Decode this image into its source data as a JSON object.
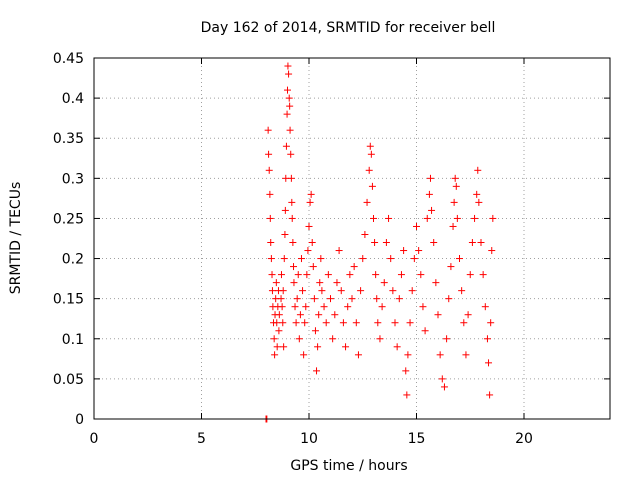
{
  "chart_data": {
    "type": "scatter",
    "title": "Day 162 of 2014, SRMTID for receiver bell",
    "xlabel": "GPS time / hours",
    "ylabel": "SRMTID / TECUs",
    "xlim": [
      0,
      24
    ],
    "ylim": [
      0,
      0.45
    ],
    "xticks": [
      0,
      5,
      10,
      15,
      20
    ],
    "yticks": [
      0,
      0.05,
      0.1,
      0.15,
      0.2,
      0.25,
      0.3,
      0.35,
      0.4,
      0.45
    ],
    "ytick_labels": [
      "0",
      "0.05",
      "0.1",
      "0.15",
      "0.2",
      "0.25",
      "0.3",
      "0.35",
      "0.4",
      "0.45"
    ],
    "marker": "+",
    "marker_color": "#ff0000",
    "grid": true,
    "series": [
      {
        "name": "SRMTID",
        "points": [
          [
            8.0,
            0.0
          ],
          [
            8.02,
            0.0
          ],
          [
            8.04,
            0.0
          ],
          [
            8.1,
            0.36
          ],
          [
            8.12,
            0.33
          ],
          [
            8.15,
            0.31
          ],
          [
            8.18,
            0.28
          ],
          [
            8.2,
            0.25
          ],
          [
            8.22,
            0.22
          ],
          [
            8.25,
            0.2
          ],
          [
            8.28,
            0.18
          ],
          [
            8.3,
            0.16
          ],
          [
            8.32,
            0.14
          ],
          [
            8.35,
            0.12
          ],
          [
            8.38,
            0.1
          ],
          [
            8.4,
            0.08
          ],
          [
            8.42,
            0.13
          ],
          [
            8.45,
            0.15
          ],
          [
            8.48,
            0.17
          ],
          [
            8.5,
            0.12
          ],
          [
            8.52,
            0.09
          ],
          [
            8.55,
            0.14
          ],
          [
            8.58,
            0.16
          ],
          [
            8.6,
            0.11
          ],
          [
            8.62,
            0.13
          ],
          [
            8.7,
            0.15
          ],
          [
            8.72,
            0.18
          ],
          [
            8.75,
            0.14
          ],
          [
            8.78,
            0.12
          ],
          [
            8.8,
            0.16
          ],
          [
            8.82,
            0.09
          ],
          [
            8.85,
            0.2
          ],
          [
            8.88,
            0.23
          ],
          [
            8.9,
            0.26
          ],
          [
            8.92,
            0.3
          ],
          [
            8.95,
            0.34
          ],
          [
            8.98,
            0.38
          ],
          [
            9.0,
            0.41
          ],
          [
            9.02,
            0.44
          ],
          [
            9.05,
            0.43
          ],
          [
            9.08,
            0.4
          ],
          [
            9.1,
            0.39
          ],
          [
            9.12,
            0.36
          ],
          [
            9.15,
            0.33
          ],
          [
            9.18,
            0.3
          ],
          [
            9.2,
            0.27
          ],
          [
            9.22,
            0.25
          ],
          [
            9.25,
            0.22
          ],
          [
            9.28,
            0.19
          ],
          [
            9.3,
            0.17
          ],
          [
            9.35,
            0.14
          ],
          [
            9.4,
            0.12
          ],
          [
            9.45,
            0.15
          ],
          [
            9.5,
            0.18
          ],
          [
            9.55,
            0.1
          ],
          [
            9.6,
            0.13
          ],
          [
            9.65,
            0.2
          ],
          [
            9.7,
            0.16
          ],
          [
            9.75,
            0.08
          ],
          [
            9.8,
            0.12
          ],
          [
            9.85,
            0.14
          ],
          [
            9.9,
            0.18
          ],
          [
            9.95,
            0.21
          ],
          [
            10.0,
            0.24
          ],
          [
            10.05,
            0.27
          ],
          [
            10.1,
            0.28
          ],
          [
            10.15,
            0.22
          ],
          [
            10.2,
            0.19
          ],
          [
            10.25,
            0.15
          ],
          [
            10.3,
            0.11
          ],
          [
            10.35,
            0.06
          ],
          [
            10.4,
            0.09
          ],
          [
            10.45,
            0.13
          ],
          [
            10.5,
            0.17
          ],
          [
            10.55,
            0.2
          ],
          [
            10.6,
            0.16
          ],
          [
            10.7,
            0.14
          ],
          [
            10.8,
            0.12
          ],
          [
            10.9,
            0.18
          ],
          [
            11.0,
            0.15
          ],
          [
            11.1,
            0.1
          ],
          [
            11.2,
            0.13
          ],
          [
            11.3,
            0.17
          ],
          [
            11.4,
            0.21
          ],
          [
            11.5,
            0.16
          ],
          [
            11.6,
            0.12
          ],
          [
            11.7,
            0.09
          ],
          [
            11.8,
            0.14
          ],
          [
            11.9,
            0.18
          ],
          [
            12.0,
            0.15
          ],
          [
            12.1,
            0.19
          ],
          [
            12.2,
            0.12
          ],
          [
            12.3,
            0.08
          ],
          [
            12.4,
            0.16
          ],
          [
            12.5,
            0.2
          ],
          [
            12.6,
            0.23
          ],
          [
            12.7,
            0.27
          ],
          [
            12.8,
            0.31
          ],
          [
            12.85,
            0.34
          ],
          [
            12.9,
            0.33
          ],
          [
            12.95,
            0.29
          ],
          [
            13.0,
            0.25
          ],
          [
            13.05,
            0.22
          ],
          [
            13.1,
            0.18
          ],
          [
            13.15,
            0.15
          ],
          [
            13.2,
            0.12
          ],
          [
            13.3,
            0.1
          ],
          [
            13.4,
            0.14
          ],
          [
            13.5,
            0.17
          ],
          [
            13.6,
            0.22
          ],
          [
            13.7,
            0.25
          ],
          [
            13.8,
            0.2
          ],
          [
            13.9,
            0.16
          ],
          [
            14.0,
            0.12
          ],
          [
            14.1,
            0.09
          ],
          [
            14.2,
            0.15
          ],
          [
            14.3,
            0.18
          ],
          [
            14.4,
            0.21
          ],
          [
            14.5,
            0.06
          ],
          [
            14.55,
            0.03
          ],
          [
            14.6,
            0.08
          ],
          [
            14.7,
            0.12
          ],
          [
            14.8,
            0.16
          ],
          [
            14.9,
            0.2
          ],
          [
            15.0,
            0.24
          ],
          [
            15.1,
            0.21
          ],
          [
            15.2,
            0.18
          ],
          [
            15.3,
            0.14
          ],
          [
            15.4,
            0.11
          ],
          [
            15.5,
            0.25
          ],
          [
            15.6,
            0.28
          ],
          [
            15.65,
            0.3
          ],
          [
            15.7,
            0.26
          ],
          [
            15.8,
            0.22
          ],
          [
            15.9,
            0.17
          ],
          [
            16.0,
            0.13
          ],
          [
            16.1,
            0.08
          ],
          [
            16.2,
            0.05
          ],
          [
            16.3,
            0.04
          ],
          [
            16.4,
            0.1
          ],
          [
            16.5,
            0.15
          ],
          [
            16.6,
            0.19
          ],
          [
            16.7,
            0.24
          ],
          [
            16.75,
            0.27
          ],
          [
            16.8,
            0.3
          ],
          [
            16.85,
            0.29
          ],
          [
            16.9,
            0.25
          ],
          [
            17.0,
            0.2
          ],
          [
            17.1,
            0.16
          ],
          [
            17.2,
            0.12
          ],
          [
            17.3,
            0.08
          ],
          [
            17.4,
            0.13
          ],
          [
            17.5,
            0.18
          ],
          [
            17.6,
            0.22
          ],
          [
            17.7,
            0.25
          ],
          [
            17.8,
            0.28
          ],
          [
            17.85,
            0.31
          ],
          [
            17.9,
            0.27
          ],
          [
            18.0,
            0.22
          ],
          [
            18.1,
            0.18
          ],
          [
            18.2,
            0.14
          ],
          [
            18.3,
            0.1
          ],
          [
            18.35,
            0.07
          ],
          [
            18.4,
            0.03
          ],
          [
            18.45,
            0.12
          ],
          [
            18.5,
            0.21
          ],
          [
            18.55,
            0.25
          ]
        ]
      }
    ]
  }
}
